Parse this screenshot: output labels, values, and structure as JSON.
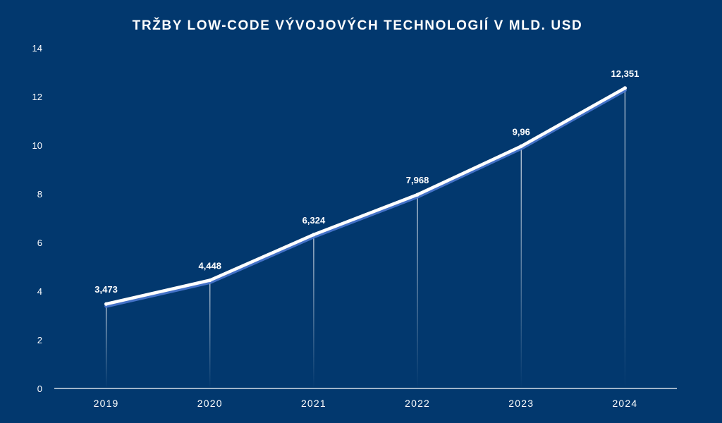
{
  "chart_data": {
    "type": "line",
    "title": "TRŽBY LOW-CODE VÝVOJOVÝCH TECHNOLOGIÍ V MLD. USD",
    "xlabel": "",
    "ylabel": "",
    "categories": [
      "2019",
      "2020",
      "2021",
      "2022",
      "2023",
      "2024"
    ],
    "series": [
      {
        "name": "Tržby",
        "values": [
          3.473,
          4.448,
          6.324,
          7.968,
          9.96,
          12.351
        ],
        "labels": [
          "3,473",
          "4,448",
          "6,324",
          "7,968",
          "9,96",
          "12,351"
        ]
      }
    ],
    "ylim": [
      0,
      14
    ],
    "yticks": [
      "0",
      "2",
      "4",
      "6",
      "8",
      "10",
      "12",
      "14"
    ],
    "grid": false,
    "legend": "none",
    "colors": {
      "background": "#02386e",
      "line": "#ffffff",
      "line_shadow": "#4a78d0",
      "text": "#ffffff",
      "drop_line": "#ffffff"
    }
  }
}
